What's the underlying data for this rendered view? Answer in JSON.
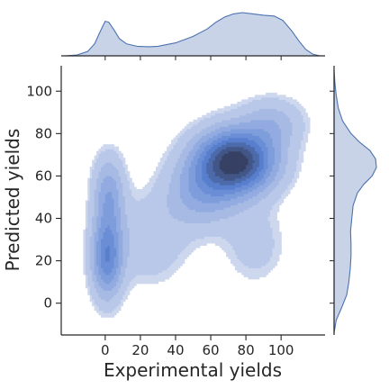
{
  "chart_data": {
    "type": "kde-joint",
    "xlabel": "Experimental yields",
    "ylabel": "Predicted yields",
    "xlim": [
      -25,
      125
    ],
    "ylim": [
      -15,
      112
    ],
    "x_ticks": [
      0,
      20,
      40,
      60,
      80,
      100
    ],
    "y_ticks": [
      0,
      20,
      40,
      60,
      80,
      100
    ],
    "x_tick_labels": [
      "0",
      "20",
      "40",
      "60",
      "80",
      "100"
    ],
    "y_tick_labels": [
      "0",
      "20",
      "40",
      "60",
      "80",
      "100"
    ],
    "grid": false,
    "fill_color": "#4c72b0",
    "contour_levels": 10,
    "joint_density_components": [
      {
        "x": 74,
        "y": 67,
        "sx": 15,
        "sy": 10,
        "weight": 0.46
      },
      {
        "x": 55,
        "y": 52,
        "sx": 14,
        "sy": 11,
        "weight": 0.14
      },
      {
        "x": 1,
        "y": 22,
        "sx": 6,
        "sy": 13,
        "weight": 0.13
      },
      {
        "x": 2,
        "y": 52,
        "sx": 6,
        "sy": 12,
        "weight": 0.07
      },
      {
        "x": 25,
        "y": 30,
        "sx": 15,
        "sy": 14,
        "weight": 0.09
      },
      {
        "x": 85,
        "y": 28,
        "sx": 12,
        "sy": 13,
        "weight": 0.05
      },
      {
        "x": 95,
        "y": 85,
        "sx": 12,
        "sy": 8,
        "weight": 0.06
      }
    ],
    "x_marginal_density": {
      "x": [
        -23,
        -16,
        -10,
        -6,
        -3,
        0,
        2,
        5,
        8,
        12,
        18,
        25,
        30,
        40,
        50,
        58,
        63,
        68,
        73,
        78,
        84,
        90,
        96,
        101,
        106,
        110,
        114,
        118,
        122
      ],
      "density": [
        0,
        0.02,
        0.1,
        0.28,
        0.55,
        0.8,
        0.78,
        0.6,
        0.4,
        0.28,
        0.22,
        0.21,
        0.22,
        0.3,
        0.45,
        0.62,
        0.78,
        0.9,
        0.97,
        1.0,
        0.97,
        0.94,
        0.92,
        0.82,
        0.58,
        0.35,
        0.15,
        0.04,
        0
      ]
    },
    "y_marginal_density": {
      "y": [
        -14,
        -8,
        -2,
        4,
        10,
        16,
        22,
        28,
        34,
        40,
        46,
        52,
        56,
        60,
        64,
        68,
        72,
        76,
        80,
        86,
        92,
        98,
        104,
        110
      ],
      "density": [
        0,
        0.05,
        0.18,
        0.3,
        0.35,
        0.38,
        0.4,
        0.4,
        0.39,
        0.42,
        0.45,
        0.55,
        0.7,
        0.9,
        1.0,
        0.98,
        0.85,
        0.6,
        0.4,
        0.2,
        0.1,
        0.05,
        0.02,
        0
      ]
    }
  }
}
